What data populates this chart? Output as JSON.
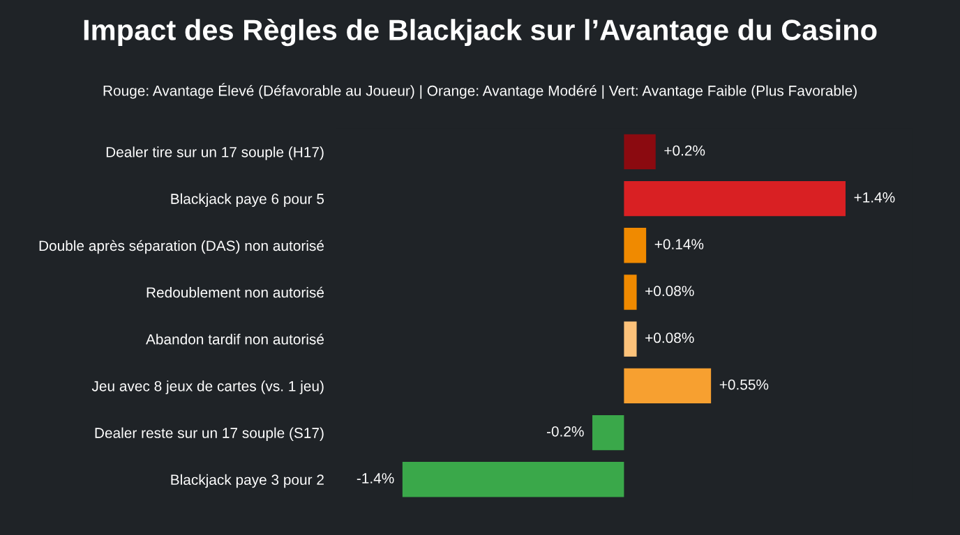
{
  "chart_data": {
    "type": "bar",
    "orientation": "horizontal",
    "title": "Impact des Règles de Blackjack sur l’Avantage du Casino",
    "subtitle": "Rouge: Avantage Élevé (Défavorable au Joueur) | Orange: Avantage Modéré | Vert: Avantage Faible (Plus Favorable)",
    "categories": [
      "Dealer tire sur un 17 souple (H17)",
      "Blackjack paye 6 pour 5",
      "Double après séparation (DAS) non autorisé",
      "Redoublement non autorisé",
      "Abandon tardif non autorisé",
      "Jeu avec 8 jeux de cartes (vs. 1 jeu)",
      "Dealer reste sur un 17 souple (S17)",
      "Blackjack paye 3 pour 2"
    ],
    "values": [
      0.2,
      1.4,
      0.14,
      0.08,
      0.08,
      0.55,
      -0.2,
      -1.4
    ],
    "value_labels": [
      "+0.2%",
      "+1.4%",
      "+0.14%",
      "+0.08%",
      "+0.08%",
      "+0.55%",
      "-0.2%",
      "-1.4%"
    ],
    "colors": [
      "#8b0a10",
      "#d92023",
      "#f08a00",
      "#f08a00",
      "#fcc27a",
      "#f7a030",
      "#3aa84a",
      "#3aa84a"
    ],
    "grid": false,
    "legend": false
  }
}
